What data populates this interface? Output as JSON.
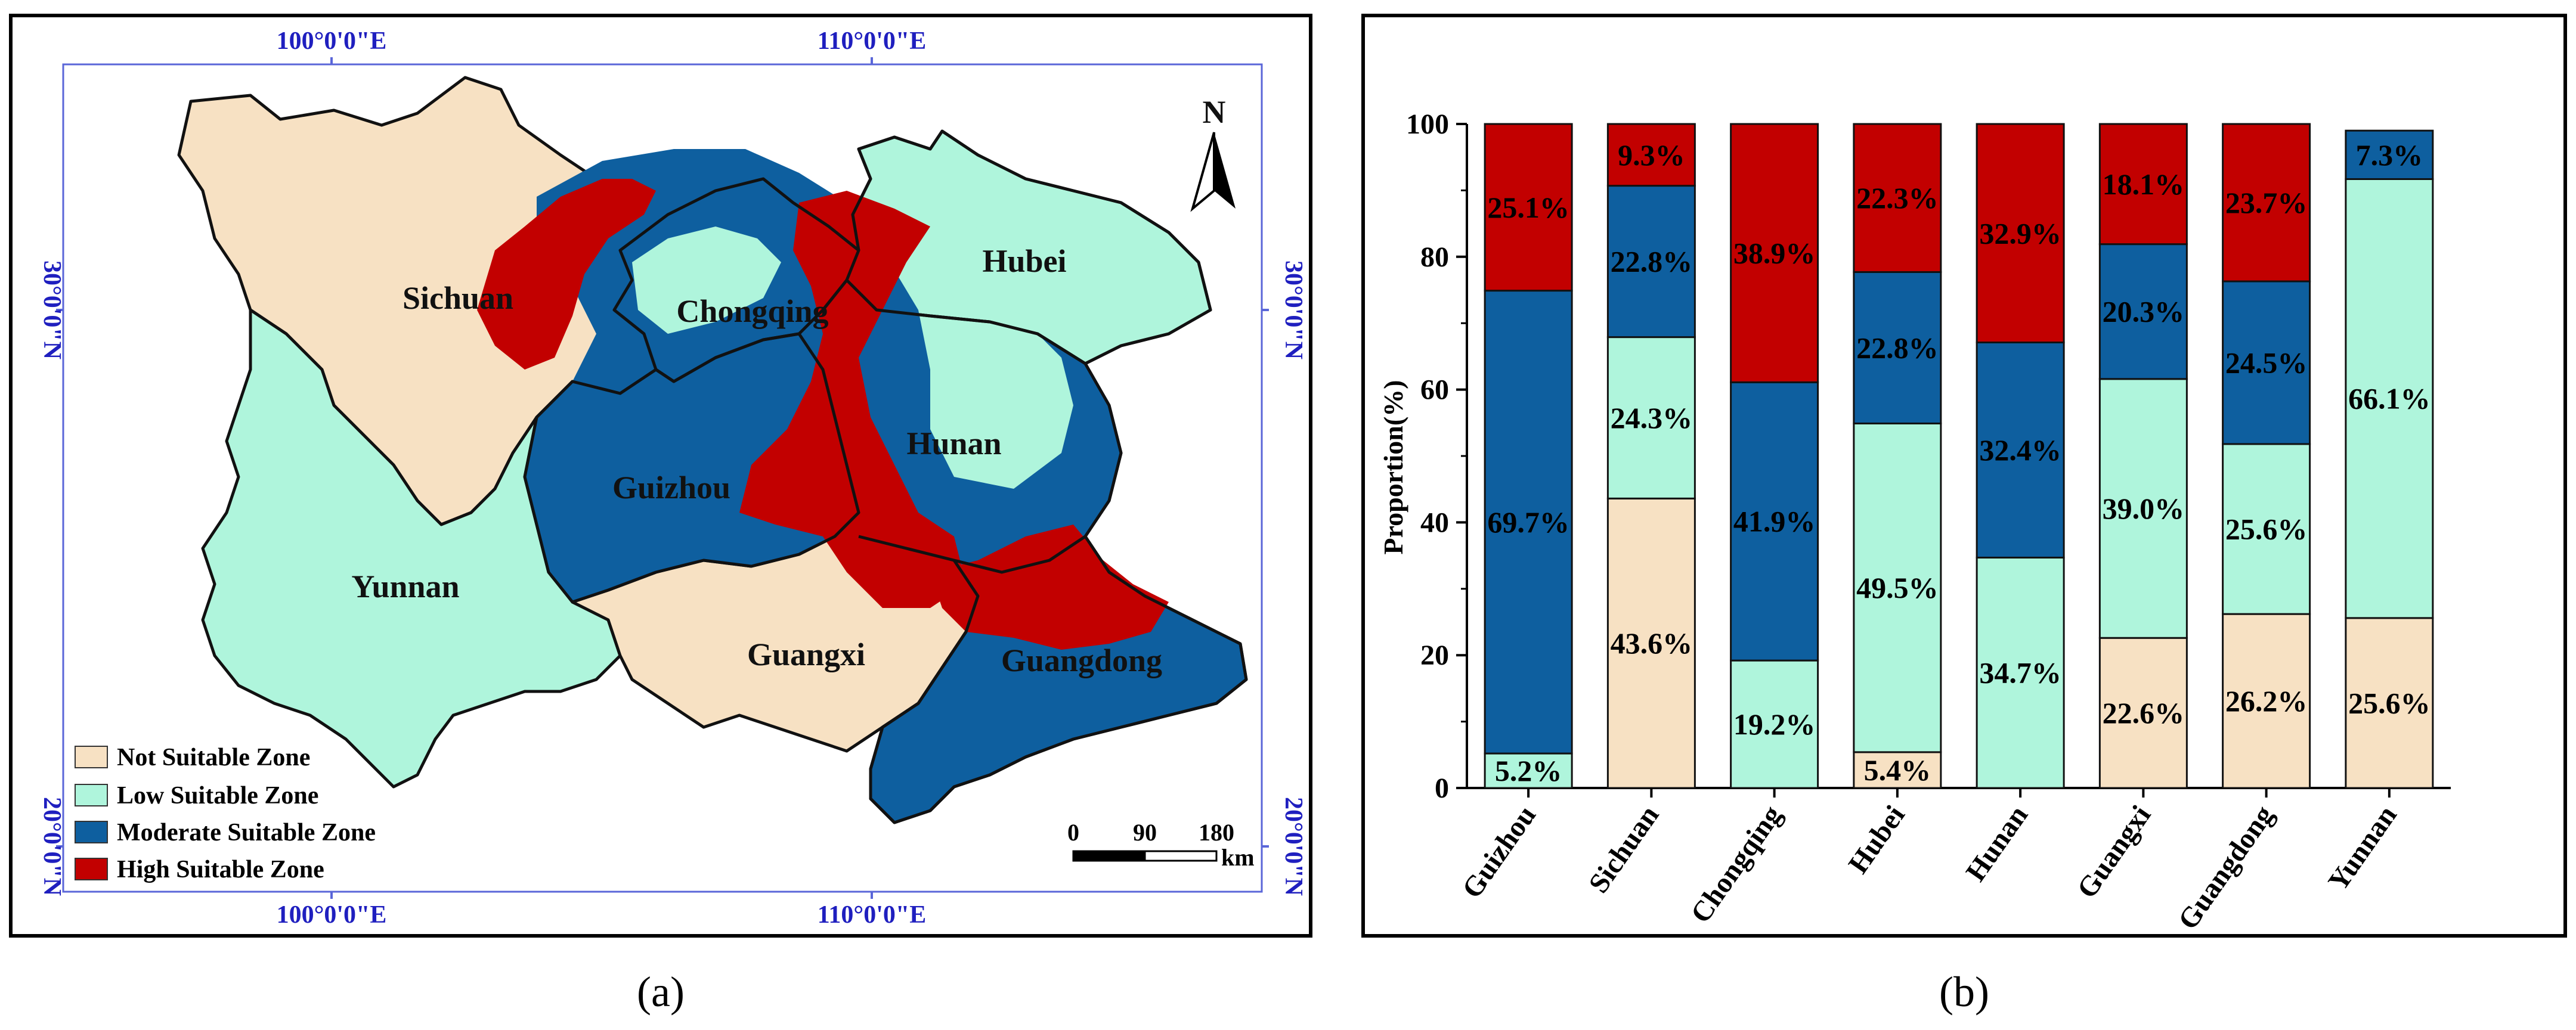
{
  "map": {
    "coord_labels": {
      "top_left": "100°0'0\"E",
      "top_right": "110°0'0\"E",
      "bottom_left": "100°0'0\"E",
      "bottom_right": "110°0'0\"E",
      "left_top": "30°0'0\"N",
      "left_bottom": "20°0'0\"N",
      "right_top": "30°0'0\"N",
      "right_bottom": "20°0'0\"N"
    },
    "north": "N",
    "provinces": [
      "Sichuan",
      "Chongqing",
      "Hubei",
      "Guizhou",
      "Hunan",
      "Yunnan",
      "Guangxi",
      "Guangdong"
    ],
    "legend": [
      {
        "label": "Not Suitable Zone",
        "color": "#f7e1c3"
      },
      {
        "label": "Low Suitable Zone",
        "color": "#aff5dc"
      },
      {
        "label": "Moderate Suitable Zone",
        "color": "#0e5f9f"
      },
      {
        "label": "High Suitable Zone",
        "color": "#c20000"
      }
    ],
    "scale": {
      "ticks": [
        "0",
        "90",
        "180"
      ],
      "unit": "km"
    }
  },
  "panels": {
    "a": "(a)",
    "b": "(b)"
  },
  "chart_data": {
    "type": "bar",
    "stacked": true,
    "title": "",
    "xlabel": "",
    "ylabel": "Proportion(%)",
    "ylim": [
      0,
      100
    ],
    "yticks": [
      "0",
      "20",
      "40",
      "60",
      "80",
      "100"
    ],
    "categories": [
      "Guizhou",
      "Sichuan",
      "Chongqing",
      "Hubei",
      "Hunan",
      "Guangxi",
      "Guangdong",
      "Yunnan"
    ],
    "series": [
      {
        "name": "Not Suitable Zone",
        "color": "#f7e1c3",
        "values": [
          0,
          43.6,
          0,
          5.4,
          0,
          22.6,
          26.2,
          25.6
        ],
        "labels": [
          "",
          "43.6%",
          "",
          "5.4%",
          "",
          "22.6%",
          "26.2%",
          "25.6%"
        ]
      },
      {
        "name": "Low Suitable Zone",
        "color": "#aff5dc",
        "values": [
          5.2,
          24.3,
          19.2,
          49.5,
          34.7,
          39.0,
          25.6,
          66.1
        ],
        "labels": [
          "5.2%",
          "24.3%",
          "19.2%",
          "49.5%",
          "34.7%",
          "39.0%",
          "25.6%",
          "66.1%"
        ]
      },
      {
        "name": "Moderate Suitable Zone",
        "color": "#0e5f9f",
        "values": [
          69.7,
          22.8,
          41.9,
          22.8,
          32.4,
          20.3,
          24.5,
          7.3
        ],
        "labels": [
          "69.7%",
          "22.8%",
          "41.9%",
          "22.8%",
          "32.4%",
          "20.3%",
          "24.5%",
          "7.3%"
        ]
      },
      {
        "name": "High Suitable Zone",
        "color": "#c20000",
        "values": [
          25.1,
          9.3,
          38.9,
          22.3,
          32.9,
          18.1,
          23.7,
          0
        ],
        "labels": [
          "25.1%",
          "9.3%",
          "38.9%",
          "22.3%",
          "32.9%",
          "18.1%",
          "23.7%",
          ""
        ]
      }
    ]
  }
}
